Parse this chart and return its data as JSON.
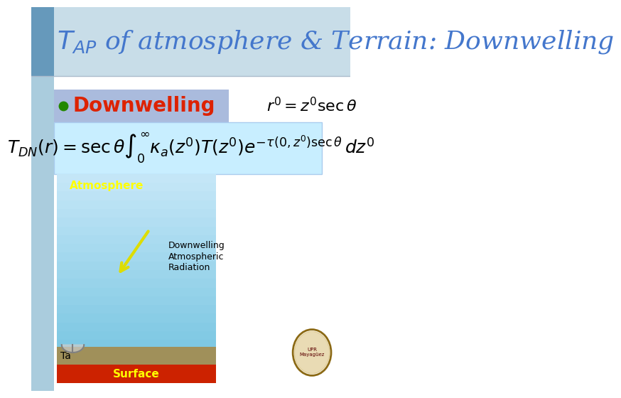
{
  "title": "$T_{AP}$ of atmosphere & Terrain: Downwelling",
  "title_color": "#4477CC",
  "title_fontsize": 26,
  "bg_color": "#DDEEFF",
  "header_texture_color": "#AACCDD",
  "bullet_color": "#228800",
  "bullet_label": "Downwelling",
  "bullet_label_color": "#DD2200",
  "bullet_label_fontsize": 20,
  "rhs_annotation": "$r'=z'\\sec\\theta$",
  "rhs_annotation_fontsize": 16,
  "equation": "$T_{DN}(r) = \\sec\\theta \\int_0^{\\infty} \\kappa_a(z')T(z')e^{-\\tau(0,z')\\sec\\theta}\\,dz'$",
  "eq_box_color": "#C8EEFF",
  "eq_fontsize": 18,
  "atmosphere_label": "Atmosphere",
  "atmosphere_label_color": "#FFFF00",
  "atmosphere_label_fontsize": 11,
  "surface_label": "Surface",
  "surface_label_color": "#FFFF00",
  "surface_label_fontsize": 11,
  "downwelling_label_line1": "Downwelling",
  "downwelling_label_line2": "Atmospheric",
  "downwelling_label_line3": "Radiation",
  "downwelling_label_color": "#000000",
  "ta_label": "Ta",
  "ta_label_color": "#000000",
  "white_bg": "#FFFFFF",
  "light_blue_bg": "#B8D8E8",
  "sky_top": "#7EC8E3",
  "sky_bottom": "#C8E8F8",
  "ground_color": "#8B4513",
  "red_strip_color": "#CC2200",
  "blue_strip_color": "#4466AA",
  "arrow_color": "#DDDD00",
  "logo_circle_color": "#8B0000"
}
